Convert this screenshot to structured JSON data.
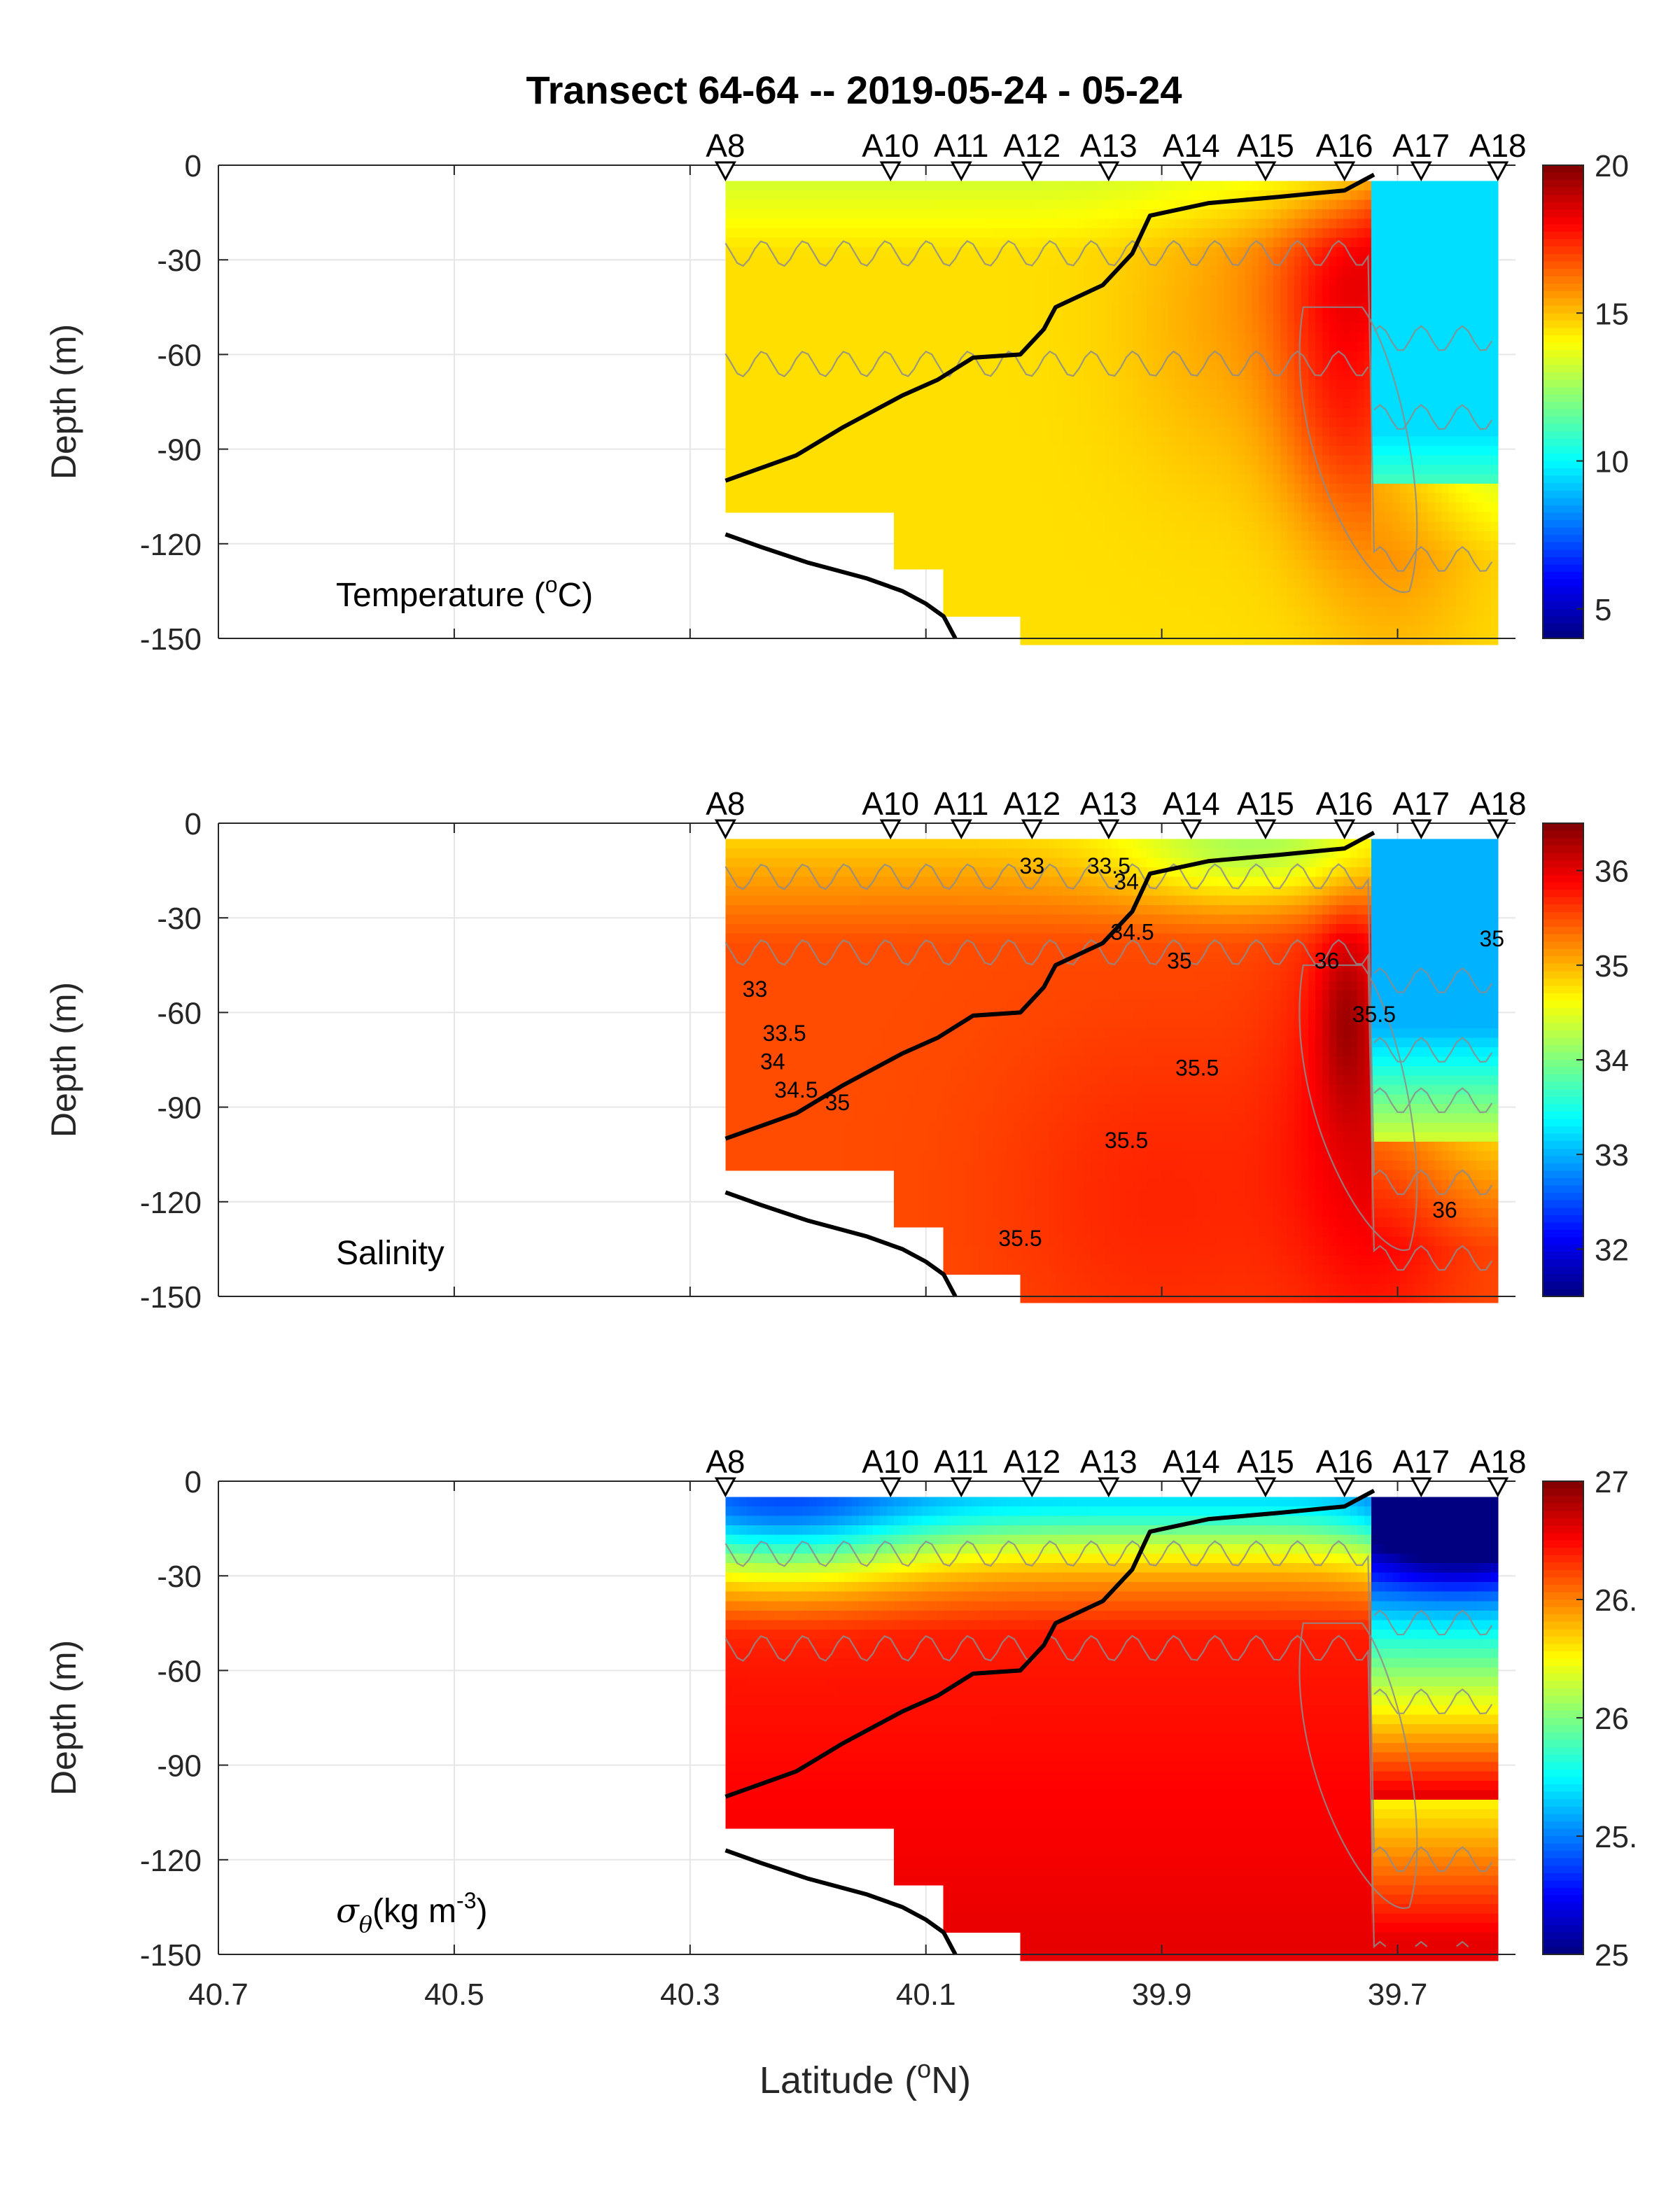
{
  "figure": {
    "title": "Transect 64-64 -- 2019-05-24 - 05-24",
    "xlabel": "Latitude (",
    "xlabel_sup": "o",
    "xlabel_tail": "N)"
  },
  "chart_data": [
    {
      "type": "heatmap",
      "panel": "temperature",
      "label_main": "Temperature (",
      "label_sup": "o",
      "label_tail": "C)",
      "ylabel": "Depth (m)",
      "xlim": [
        40.7,
        39.6
      ],
      "ylim": [
        -150,
        0
      ],
      "x_ticks": [
        "40.7",
        "40.5",
        "40.3",
        "40.1",
        "39.9",
        "39.7"
      ],
      "y_ticks": [
        "0",
        "-30",
        "-60",
        "-90",
        "-120",
        "-150"
      ],
      "stations": [
        {
          "name": "A8",
          "lat": 40.27
        },
        {
          "name": "A10",
          "lat": 40.13
        },
        {
          "name": "A11",
          "lat": 40.07
        },
        {
          "name": "A12",
          "lat": 40.01
        },
        {
          "name": "A13",
          "lat": 39.945
        },
        {
          "name": "A14",
          "lat": 39.875
        },
        {
          "name": "A15",
          "lat": 39.812
        },
        {
          "name": "A16",
          "lat": 39.745
        },
        {
          "name": "A17",
          "lat": 39.68
        },
        {
          "name": "A18",
          "lat": 39.615
        }
      ],
      "colorbar": {
        "min": 4,
        "max": 20,
        "ticks": [
          "20",
          "15",
          "10",
          "5"
        ],
        "tick_values": [
          20,
          15,
          10,
          5
        ]
      },
      "contour_labels": []
    },
    {
      "type": "heatmap",
      "panel": "salinity",
      "label_main": "Salinity",
      "ylabel": "Depth (m)",
      "xlim": [
        40.7,
        39.6
      ],
      "ylim": [
        -150,
        0
      ],
      "x_ticks": [
        "40.7",
        "40.5",
        "40.3",
        "40.1",
        "39.9",
        "39.7"
      ],
      "y_ticks": [
        "0",
        "-30",
        "-60",
        "-90",
        "-120",
        "-150"
      ],
      "stations": [
        {
          "name": "A8",
          "lat": 40.27
        },
        {
          "name": "A10",
          "lat": 40.13
        },
        {
          "name": "A11",
          "lat": 40.07
        },
        {
          "name": "A12",
          "lat": 40.01
        },
        {
          "name": "A13",
          "lat": 39.945
        },
        {
          "name": "A14",
          "lat": 39.875
        },
        {
          "name": "A15",
          "lat": 39.812
        },
        {
          "name": "A16",
          "lat": 39.745
        },
        {
          "name": "A17",
          "lat": 39.68
        },
        {
          "name": "A18",
          "lat": 39.615
        }
      ],
      "colorbar": {
        "min": 31.5,
        "max": 36.5,
        "ticks": [
          "36",
          "35",
          "34",
          "33",
          "32"
        ],
        "tick_values": [
          36,
          35,
          34,
          33,
          32
        ]
      },
      "contour_labels": [
        {
          "text": "33",
          "lat": 40.01,
          "depth": -16
        },
        {
          "text": "33.5",
          "lat": 39.945,
          "depth": -16
        },
        {
          "text": "34",
          "lat": 39.93,
          "depth": -21
        },
        {
          "text": "34.5",
          "lat": 39.925,
          "depth": -37
        },
        {
          "text": "35",
          "lat": 39.885,
          "depth": -46
        },
        {
          "text": "36",
          "lat": 39.76,
          "depth": -46
        },
        {
          "text": "35",
          "lat": 39.62,
          "depth": -39
        },
        {
          "text": "33",
          "lat": 40.245,
          "depth": -55
        },
        {
          "text": "35.5",
          "lat": 39.72,
          "depth": -63
        },
        {
          "text": "33.5",
          "lat": 40.22,
          "depth": -69
        },
        {
          "text": "34",
          "lat": 40.23,
          "depth": -78
        },
        {
          "text": "34.5",
          "lat": 40.21,
          "depth": -87
        },
        {
          "text": "35",
          "lat": 40.175,
          "depth": -91
        },
        {
          "text": "35.5",
          "lat": 39.87,
          "depth": -80
        },
        {
          "text": "35.5",
          "lat": 39.93,
          "depth": -103
        },
        {
          "text": "36",
          "lat": 39.66,
          "depth": -125
        },
        {
          "text": "35.5",
          "lat": 40.02,
          "depth": -134
        }
      ]
    },
    {
      "type": "heatmap",
      "panel": "density",
      "label_main": "(kg m",
      "label_sup": "-3",
      "label_tail": ")",
      "ylabel": "Depth (m)",
      "xlim": [
        40.7,
        39.6
      ],
      "ylim": [
        -150,
        0
      ],
      "x_ticks": [
        "40.7",
        "40.5",
        "40.3",
        "40.1",
        "39.9",
        "39.7"
      ],
      "y_ticks": [
        "0",
        "-30",
        "-60",
        "-90",
        "-120",
        "-150"
      ],
      "stations": [
        {
          "name": "A8",
          "lat": 40.27
        },
        {
          "name": "A10",
          "lat": 40.13
        },
        {
          "name": "A11",
          "lat": 40.07
        },
        {
          "name": "A12",
          "lat": 40.01
        },
        {
          "name": "A13",
          "lat": 39.945
        },
        {
          "name": "A14",
          "lat": 39.875
        },
        {
          "name": "A15",
          "lat": 39.812
        },
        {
          "name": "A16",
          "lat": 39.745
        },
        {
          "name": "A17",
          "lat": 39.68
        },
        {
          "name": "A18",
          "lat": 39.615
        }
      ],
      "colorbar": {
        "min": 25,
        "max": 27,
        "ticks": [
          "27",
          "26.",
          "26",
          "25.",
          "25"
        ],
        "tick_values": [
          27,
          26.5,
          26,
          25.5,
          25
        ]
      },
      "contour_labels": []
    }
  ]
}
